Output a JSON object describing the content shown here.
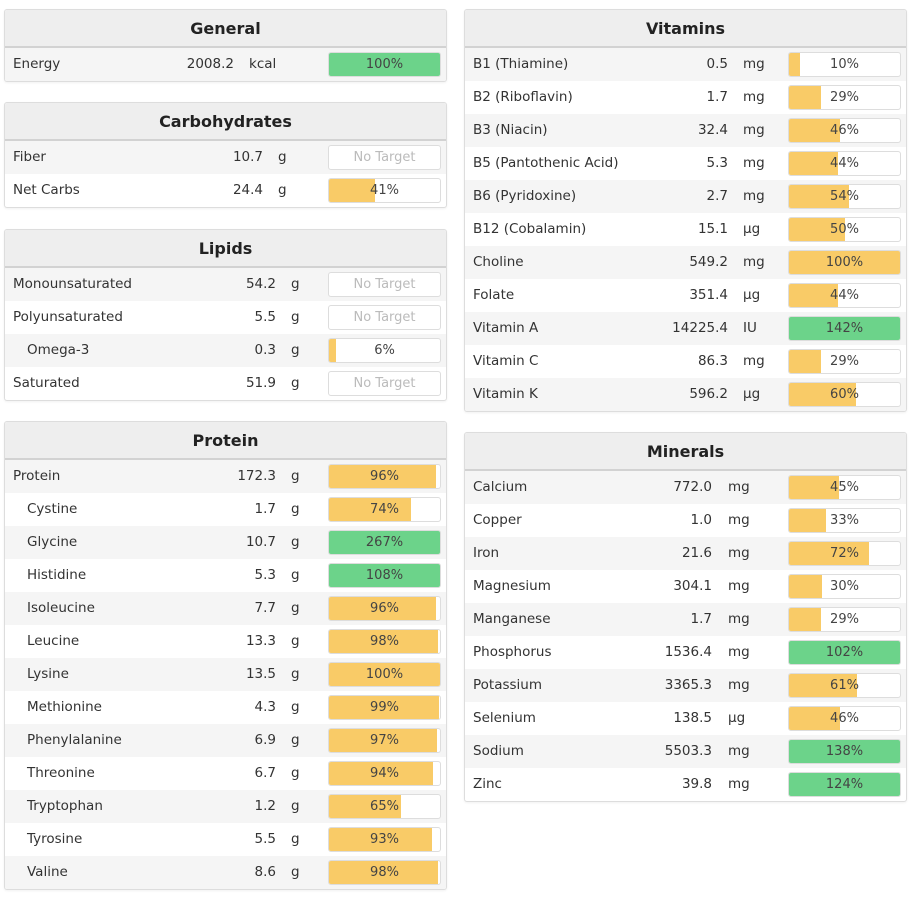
{
  "colors": {
    "met": "#6cd38a",
    "partial": "#f9cb67"
  },
  "panels": [
    {
      "id": "general",
      "title": "General",
      "rows": [
        {
          "name": "Energy",
          "value": "2008.2",
          "unit": "kcal",
          "percent": 100,
          "label": "100%"
        }
      ]
    },
    {
      "id": "carbohydrates",
      "title": "Carbohydrates",
      "rows": [
        {
          "name": "Fiber",
          "value": "10.7",
          "unit": "g",
          "percent": null,
          "label": "No Target"
        },
        {
          "name": "Net Carbs",
          "value": "24.4",
          "unit": "g",
          "percent": 41,
          "label": "41%"
        }
      ]
    },
    {
      "id": "lipids",
      "title": "Lipids",
      "rows": [
        {
          "name": "Monounsaturated",
          "value": "54.2",
          "unit": "g",
          "percent": null,
          "label": "No Target"
        },
        {
          "name": "Polyunsaturated",
          "value": "5.5",
          "unit": "g",
          "percent": null,
          "label": "No Target"
        },
        {
          "name": "Omega-3",
          "value": "0.3",
          "unit": "g",
          "percent": 6,
          "label": "6%",
          "indent": true
        },
        {
          "name": "Saturated",
          "value": "51.9",
          "unit": "g",
          "percent": null,
          "label": "No Target"
        }
      ]
    },
    {
      "id": "protein",
      "title": "Protein",
      "rows": [
        {
          "name": "Protein",
          "value": "172.3",
          "unit": "g",
          "percent": 96,
          "label": "96%"
        },
        {
          "name": "Cystine",
          "value": "1.7",
          "unit": "g",
          "percent": 74,
          "label": "74%",
          "indent": true
        },
        {
          "name": "Glycine",
          "value": "10.7",
          "unit": "g",
          "percent": 267,
          "label": "267%",
          "indent": true
        },
        {
          "name": "Histidine",
          "value": "5.3",
          "unit": "g",
          "percent": 108,
          "label": "108%",
          "indent": true
        },
        {
          "name": "Isoleucine",
          "value": "7.7",
          "unit": "g",
          "percent": 96,
          "label": "96%",
          "indent": true
        },
        {
          "name": "Leucine",
          "value": "13.3",
          "unit": "g",
          "percent": 98,
          "label": "98%",
          "indent": true
        },
        {
          "name": "Lysine",
          "value": "13.5",
          "unit": "g",
          "percent": 100,
          "label": "100%",
          "indent": true,
          "partial": true
        },
        {
          "name": "Methionine",
          "value": "4.3",
          "unit": "g",
          "percent": 99,
          "label": "99%",
          "indent": true
        },
        {
          "name": "Phenylalanine",
          "value": "6.9",
          "unit": "g",
          "percent": 97,
          "label": "97%",
          "indent": true
        },
        {
          "name": "Threonine",
          "value": "6.7",
          "unit": "g",
          "percent": 94,
          "label": "94%",
          "indent": true
        },
        {
          "name": "Tryptophan",
          "value": "1.2",
          "unit": "g",
          "percent": 65,
          "label": "65%",
          "indent": true
        },
        {
          "name": "Tyrosine",
          "value": "5.5",
          "unit": "g",
          "percent": 93,
          "label": "93%",
          "indent": true
        },
        {
          "name": "Valine",
          "value": "8.6",
          "unit": "g",
          "percent": 98,
          "label": "98%",
          "indent": true
        }
      ]
    },
    {
      "id": "vitamins",
      "title": "Vitamins",
      "rows": [
        {
          "name": "B1 (Thiamine)",
          "value": "0.5",
          "unit": "mg",
          "percent": 10,
          "label": "10%"
        },
        {
          "name": "B2 (Riboflavin)",
          "value": "1.7",
          "unit": "mg",
          "percent": 29,
          "label": "29%"
        },
        {
          "name": "B3 (Niacin)",
          "value": "32.4",
          "unit": "mg",
          "percent": 46,
          "label": "46%"
        },
        {
          "name": "B5 (Pantothenic Acid)",
          "value": "5.3",
          "unit": "mg",
          "percent": 44,
          "label": "44%"
        },
        {
          "name": "B6 (Pyridoxine)",
          "value": "2.7",
          "unit": "mg",
          "percent": 54,
          "label": "54%"
        },
        {
          "name": "B12 (Cobalamin)",
          "value": "15.1",
          "unit": "µg",
          "percent": 50,
          "label": "50%"
        },
        {
          "name": "Choline",
          "value": "549.2",
          "unit": "mg",
          "percent": 100,
          "label": "100%",
          "partial": true
        },
        {
          "name": "Folate",
          "value": "351.4",
          "unit": "µg",
          "percent": 44,
          "label": "44%"
        },
        {
          "name": "Vitamin A",
          "value": "14225.4",
          "unit": "IU",
          "percent": 142,
          "label": "142%"
        },
        {
          "name": "Vitamin C",
          "value": "86.3",
          "unit": "mg",
          "percent": 29,
          "label": "29%"
        },
        {
          "name": "Vitamin K",
          "value": "596.2",
          "unit": "µg",
          "percent": 60,
          "label": "60%"
        }
      ]
    },
    {
      "id": "minerals",
      "title": "Minerals",
      "rows": [
        {
          "name": "Calcium",
          "value": "772.0",
          "unit": "mg",
          "percent": 45,
          "label": "45%"
        },
        {
          "name": "Copper",
          "value": "1.0",
          "unit": "mg",
          "percent": 33,
          "label": "33%"
        },
        {
          "name": "Iron",
          "value": "21.6",
          "unit": "mg",
          "percent": 72,
          "label": "72%"
        },
        {
          "name": "Magnesium",
          "value": "304.1",
          "unit": "mg",
          "percent": 30,
          "label": "30%"
        },
        {
          "name": "Manganese",
          "value": "1.7",
          "unit": "mg",
          "percent": 29,
          "label": "29%"
        },
        {
          "name": "Phosphorus",
          "value": "1536.4",
          "unit": "mg",
          "percent": 102,
          "label": "102%"
        },
        {
          "name": "Potassium",
          "value": "3365.3",
          "unit": "mg",
          "percent": 61,
          "label": "61%"
        },
        {
          "name": "Selenium",
          "value": "138.5",
          "unit": "µg",
          "percent": 46,
          "label": "46%"
        },
        {
          "name": "Sodium",
          "value": "5503.3",
          "unit": "mg",
          "percent": 138,
          "label": "138%"
        },
        {
          "name": "Zinc",
          "value": "39.8",
          "unit": "mg",
          "percent": 124,
          "label": "124%"
        }
      ]
    }
  ]
}
